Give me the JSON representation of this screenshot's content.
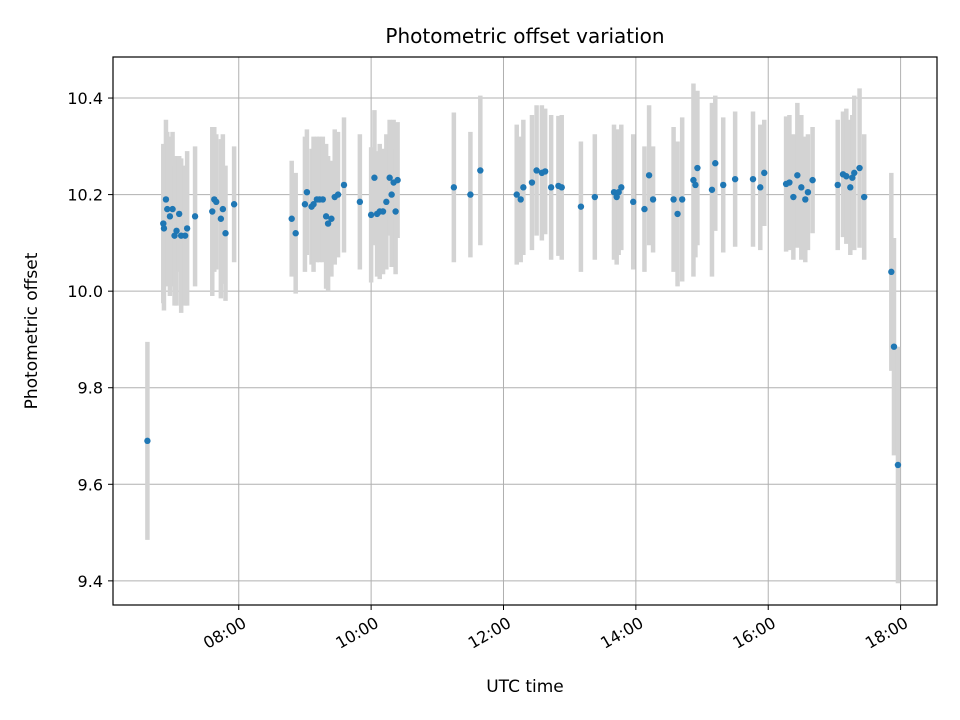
{
  "chart_data": {
    "type": "scatter",
    "title": "Photometric offset variation",
    "xlabel": "UTC time",
    "ylabel": "Photometric offset",
    "x_unit": "hours UTC",
    "xlim": [
      6.1,
      18.55
    ],
    "ylim": [
      9.35,
      10.485
    ],
    "grid": true,
    "legend": "none",
    "x_ticks": [
      {
        "value": 8,
        "label": "08:00"
      },
      {
        "value": 10,
        "label": "10:00"
      },
      {
        "value": 12,
        "label": "12:00"
      },
      {
        "value": 14,
        "label": "14:00"
      },
      {
        "value": 16,
        "label": "16:00"
      },
      {
        "value": 18,
        "label": "18:00"
      }
    ],
    "y_ticks": [
      {
        "value": 9.4,
        "label": "9.4"
      },
      {
        "value": 9.6,
        "label": "9.6"
      },
      {
        "value": 9.8,
        "label": "9.8"
      },
      {
        "value": 10.0,
        "label": "10.0"
      },
      {
        "value": 10.2,
        "label": "10.2"
      },
      {
        "value": 10.4,
        "label": "10.4"
      }
    ],
    "colors": {
      "point": "#1f77b4",
      "errorbar": "#d3d3d3",
      "grid": "#b0b0b0"
    },
    "series": [
      {
        "x": [
          6.62,
          6.86,
          6.87,
          6.9,
          6.92,
          6.96,
          7.0,
          7.03,
          7.06,
          7.1,
          7.13,
          7.19,
          7.22,
          7.34,
          7.6,
          7.63,
          7.66,
          7.73,
          7.76,
          7.8,
          7.93
        ],
        "y": [
          9.69,
          10.14,
          10.13,
          10.19,
          10.17,
          10.155,
          10.17,
          10.115,
          10.125,
          10.16,
          10.115,
          10.115,
          10.13,
          10.155,
          10.165,
          10.19,
          10.185,
          10.15,
          10.17,
          10.12,
          10.18
        ],
        "yerr": [
          0.205,
          0.165,
          0.17,
          0.165,
          0.16,
          0.165,
          0.16,
          0.145,
          0.155,
          0.12,
          0.16,
          0.145,
          0.16,
          0.145,
          0.175,
          0.15,
          0.14,
          0.165,
          0.155,
          0.14,
          0.12
        ]
      },
      {
        "x": [
          8.8,
          8.86,
          9.0,
          9.03,
          9.1,
          9.13,
          9.18,
          9.22,
          9.27,
          9.32,
          9.35,
          9.4,
          9.45,
          9.5,
          9.59,
          9.83,
          10.0,
          10.05,
          10.09,
          10.13,
          10.18,
          10.23,
          10.28,
          10.31,
          10.34,
          10.37,
          10.4
        ],
        "y": [
          10.15,
          10.12,
          10.18,
          10.205,
          10.175,
          10.18,
          10.19,
          10.19,
          10.19,
          10.155,
          10.14,
          10.15,
          10.195,
          10.2,
          10.22,
          10.185,
          10.158,
          10.235,
          10.16,
          10.165,
          10.165,
          10.185,
          10.235,
          10.2,
          10.225,
          10.165,
          10.23
        ],
        "yerr": [
          0.12,
          0.125,
          0.14,
          0.13,
          0.12,
          0.14,
          0.13,
          0.13,
          0.13,
          0.15,
          0.14,
          0.12,
          0.14,
          0.13,
          0.14,
          0.14,
          0.14,
          0.14,
          0.13,
          0.14,
          0.13,
          0.14,
          0.12,
          0.15,
          0.13,
          0.13,
          0.12
        ]
      },
      {
        "x": [
          11.25,
          11.5,
          11.65
        ],
        "y": [
          10.215,
          10.2,
          10.25
        ],
        "yerr": [
          0.155,
          0.13,
          0.155
        ]
      },
      {
        "x": [
          12.2,
          12.26,
          12.3,
          12.43,
          12.5,
          12.58,
          12.63,
          12.72,
          12.83,
          12.88,
          13.17,
          13.38,
          13.67,
          13.71,
          13.74,
          13.78,
          13.96,
          14.13,
          14.2,
          14.26
        ],
        "y": [
          10.2,
          10.19,
          10.215,
          10.225,
          10.25,
          10.245,
          10.248,
          10.215,
          10.218,
          10.215,
          10.175,
          10.195,
          10.205,
          10.195,
          10.205,
          10.215,
          10.185,
          10.17,
          10.24,
          10.19
        ],
        "yerr": [
          0.145,
          0.13,
          0.14,
          0.14,
          0.135,
          0.14,
          0.13,
          0.15,
          0.145,
          0.15,
          0.135,
          0.13,
          0.14,
          0.14,
          0.13,
          0.13,
          0.14,
          0.13,
          0.145,
          0.11
        ]
      },
      {
        "x": [
          14.57,
          14.63,
          14.7,
          14.87,
          14.9,
          14.93,
          15.15,
          15.2,
          15.32,
          15.5,
          15.77,
          15.88,
          15.94,
          16.27,
          16.32,
          16.38,
          16.44,
          16.5,
          16.56,
          16.6,
          16.67,
          17.05,
          17.13,
          17.18,
          17.24,
          17.27,
          17.3,
          17.38,
          17.45
        ],
        "y": [
          10.19,
          10.16,
          10.19,
          10.23,
          10.22,
          10.255,
          10.21,
          10.265,
          10.22,
          10.232,
          10.232,
          10.215,
          10.245,
          10.222,
          10.225,
          10.195,
          10.24,
          10.215,
          10.19,
          10.205,
          10.23,
          10.22,
          10.242,
          10.238,
          10.215,
          10.235,
          10.245,
          10.255,
          10.195
        ],
        "yerr": [
          0.15,
          0.15,
          0.17,
          0.2,
          0.15,
          0.16,
          0.18,
          0.14,
          0.14,
          0.14,
          0.14,
          0.13,
          0.11,
          0.14,
          0.14,
          0.13,
          0.15,
          0.15,
          0.13,
          0.12,
          0.11,
          0.135,
          0.13,
          0.14,
          0.14,
          0.13,
          0.16,
          0.165,
          0.13
        ]
      },
      {
        "x": [
          17.86,
          17.9,
          17.96
        ],
        "y": [
          10.04,
          9.885,
          9.64
        ],
        "yerr": [
          0.205,
          0.225,
          0.245
        ]
      }
    ]
  }
}
